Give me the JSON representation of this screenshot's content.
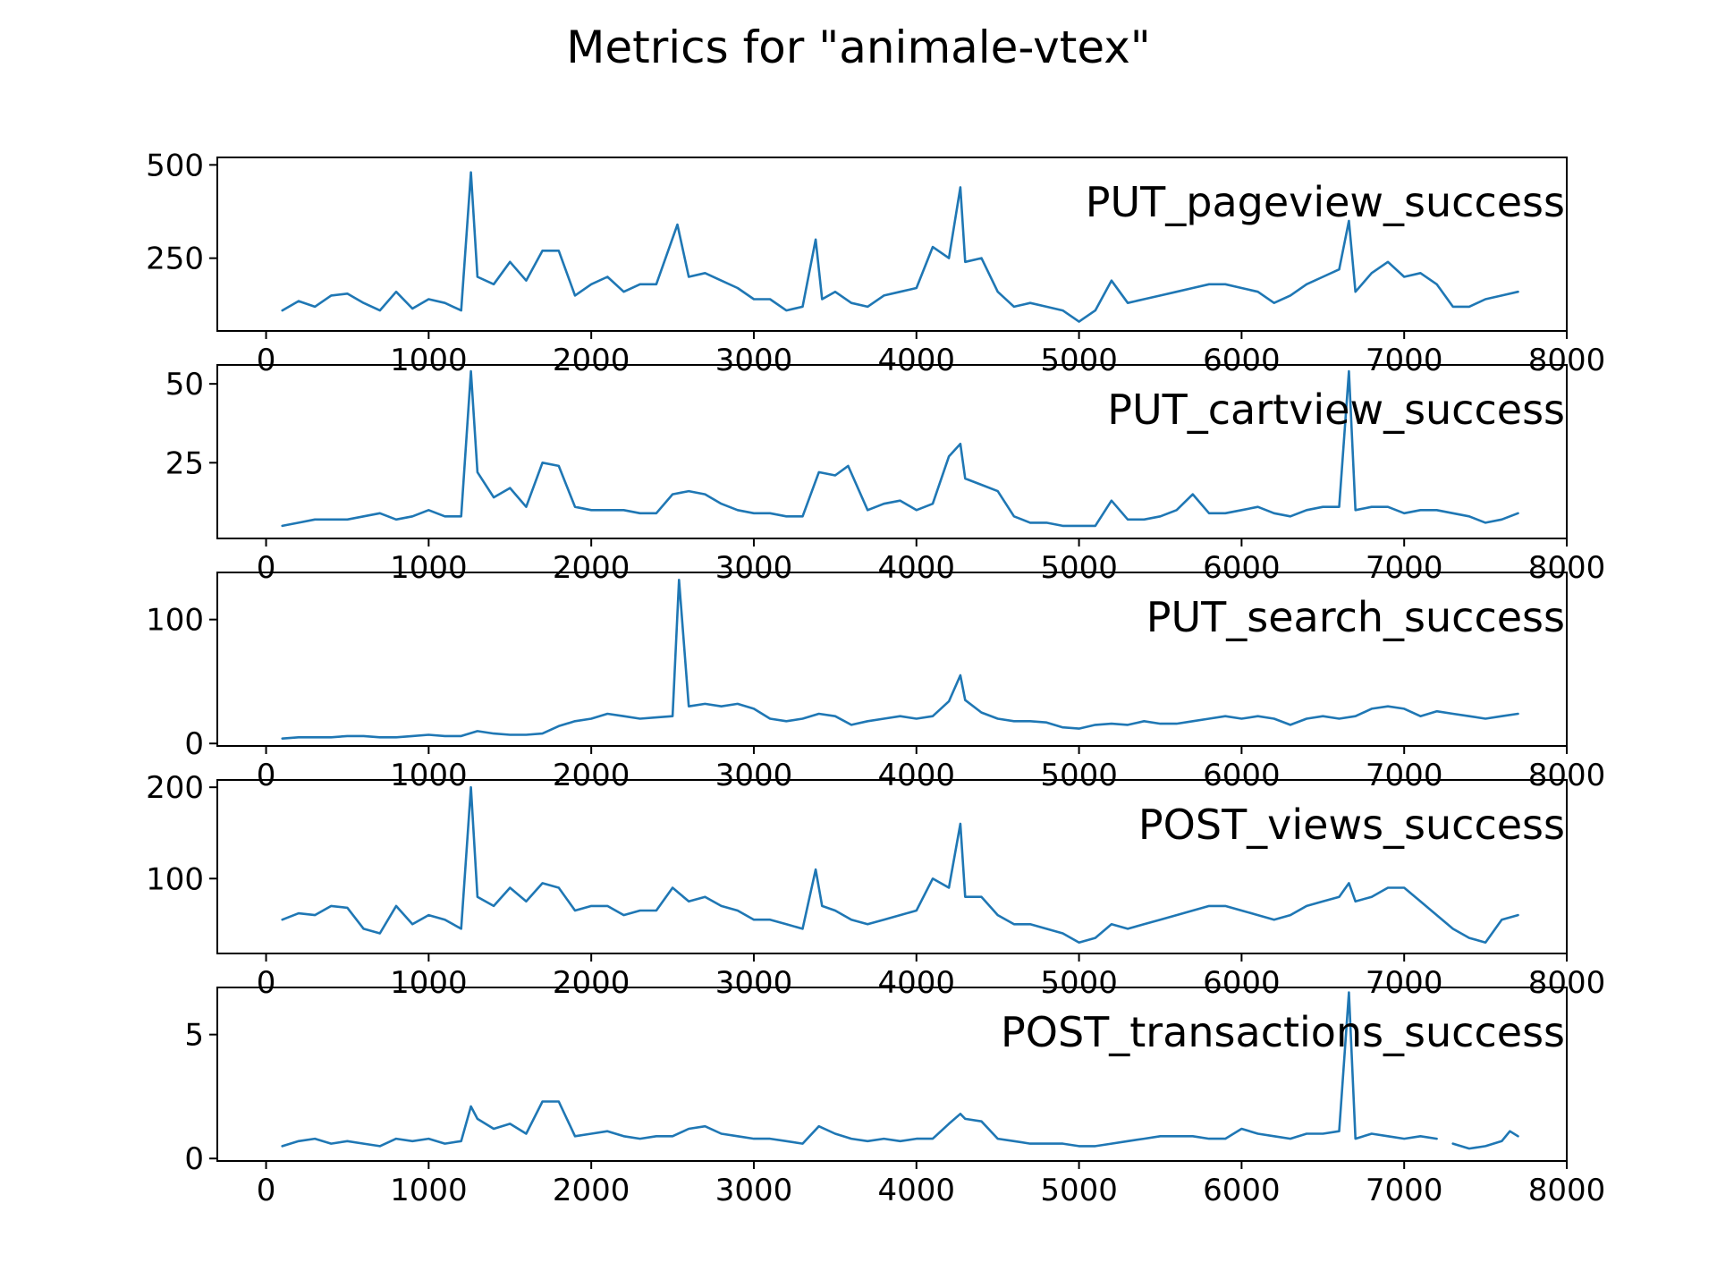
{
  "figure": {
    "title": "Metrics for \"animale-vtex\"",
    "line_color": "#1f77b4"
  },
  "chart_data": [
    {
      "type": "line",
      "label": "PUT_pageview_success",
      "xlim": [
        -300,
        8000
      ],
      "ylim": [
        55,
        520
      ],
      "yticks": [
        250,
        500
      ],
      "xticks": [
        0,
        1000,
        2000,
        3000,
        4000,
        5000,
        6000,
        7000,
        8000
      ],
      "grid": false,
      "series": [
        {
          "x": [
            100,
            200,
            300,
            400,
            500,
            600,
            700,
            800,
            900,
            1000,
            1100,
            1200,
            1260,
            1300,
            1400,
            1500,
            1600,
            1700,
            1800,
            1900,
            2000,
            2100,
            2200,
            2300,
            2400,
            2530,
            2600,
            2700,
            2800,
            2900,
            3000,
            3100,
            3200,
            3300,
            3380,
            3420,
            3500,
            3600,
            3700,
            3800,
            3900,
            4000,
            4100,
            4200,
            4270,
            4300,
            4400,
            4500,
            4600,
            4700,
            4800,
            4900,
            5000,
            5100,
            5200,
            5300,
            5400,
            5500,
            5600,
            5700,
            5800,
            5900,
            6000,
            6100,
            6200,
            6300,
            6400,
            6500,
            6600,
            6660,
            6700,
            6800,
            6900,
            7000,
            7100,
            7200,
            7300,
            7400,
            7500,
            7600,
            7700
          ],
          "y": [
            110,
            135,
            120,
            150,
            155,
            130,
            110,
            160,
            115,
            140,
            130,
            110,
            480,
            200,
            180,
            240,
            190,
            270,
            270,
            150,
            180,
            200,
            160,
            180,
            180,
            340,
            200,
            210,
            190,
            170,
            140,
            140,
            110,
            120,
            300,
            140,
            160,
            130,
            120,
            150,
            160,
            170,
            280,
            250,
            440,
            240,
            250,
            160,
            120,
            130,
            120,
            110,
            80,
            110,
            190,
            130,
            140,
            150,
            160,
            170,
            180,
            180,
            170,
            160,
            130,
            150,
            180,
            200,
            220,
            350,
            160,
            210,
            240,
            200,
            210,
            180,
            120,
            120,
            140,
            150,
            160
          ]
        }
      ]
    },
    {
      "type": "line",
      "label": "PUT_cartview_success",
      "xlim": [
        -300,
        8000
      ],
      "ylim": [
        1,
        56
      ],
      "yticks": [
        25,
        50
      ],
      "xticks": [
        0,
        1000,
        2000,
        3000,
        4000,
        5000,
        6000,
        7000,
        8000
      ],
      "grid": false,
      "series": [
        {
          "x": [
            100,
            200,
            300,
            400,
            500,
            600,
            700,
            800,
            900,
            1000,
            1100,
            1200,
            1260,
            1300,
            1400,
            1500,
            1600,
            1700,
            1800,
            1900,
            2000,
            2100,
            2200,
            2300,
            2400,
            2500,
            2600,
            2700,
            2800,
            2900,
            3000,
            3100,
            3200,
            3300,
            3400,
            3500,
            3580,
            3700,
            3800,
            3900,
            4000,
            4100,
            4200,
            4270,
            4300,
            4400,
            4500,
            4600,
            4700,
            4800,
            4900,
            5000,
            5100,
            5200,
            5300,
            5400,
            5500,
            5600,
            5700,
            5800,
            5900,
            6000,
            6100,
            6200,
            6300,
            6400,
            6500,
            6600,
            6660,
            6700,
            6800,
            6900,
            7000,
            7100,
            7200,
            7300,
            7400,
            7500,
            7600,
            7700
          ],
          "y": [
            5,
            6,
            7,
            7,
            7,
            8,
            9,
            7,
            8,
            10,
            8,
            8,
            54,
            22,
            14,
            17,
            11,
            25,
            24,
            11,
            10,
            10,
            10,
            9,
            9,
            15,
            16,
            15,
            12,
            10,
            9,
            9,
            8,
            8,
            22,
            21,
            24,
            10,
            12,
            13,
            10,
            12,
            27,
            31,
            20,
            18,
            16,
            8,
            6,
            6,
            5,
            5,
            5,
            13,
            7,
            7,
            8,
            10,
            15,
            9,
            9,
            10,
            11,
            9,
            8,
            10,
            11,
            11,
            54,
            10,
            11,
            11,
            9,
            10,
            10,
            9,
            8,
            6,
            7,
            9
          ]
        }
      ]
    },
    {
      "type": "line",
      "label": "PUT_search_success",
      "xlim": [
        -300,
        8000
      ],
      "ylim": [
        -2,
        138
      ],
      "yticks": [
        0,
        100
      ],
      "xticks": [
        0,
        1000,
        2000,
        3000,
        4000,
        5000,
        6000,
        7000,
        8000
      ],
      "grid": false,
      "series": [
        {
          "x": [
            100,
            200,
            300,
            400,
            500,
            600,
            700,
            800,
            900,
            1000,
            1100,
            1200,
            1300,
            1400,
            1500,
            1600,
            1700,
            1800,
            1900,
            2000,
            2100,
            2200,
            2300,
            2400,
            2500,
            2540,
            2600,
            2700,
            2800,
            2900,
            3000,
            3100,
            3200,
            3300,
            3400,
            3500,
            3600,
            3700,
            3800,
            3900,
            4000,
            4100,
            4200,
            4270,
            4300,
            4400,
            4500,
            4600,
            4700,
            4800,
            4900,
            5000,
            5100,
            5200,
            5300,
            5400,
            5500,
            5600,
            5700,
            5800,
            5900,
            6000,
            6100,
            6200,
            6300,
            6400,
            6500,
            6600,
            6700,
            6800,
            6900,
            7000,
            7100,
            7200,
            7300,
            7400,
            7500,
            7600,
            7700
          ],
          "y": [
            4,
            5,
            5,
            5,
            6,
            6,
            5,
            5,
            6,
            7,
            6,
            6,
            10,
            8,
            7,
            7,
            8,
            14,
            18,
            20,
            24,
            22,
            20,
            21,
            22,
            132,
            30,
            32,
            30,
            32,
            28,
            20,
            18,
            20,
            24,
            22,
            15,
            18,
            20,
            22,
            20,
            22,
            34,
            55,
            35,
            25,
            20,
            18,
            18,
            17,
            13,
            12,
            15,
            16,
            15,
            18,
            16,
            16,
            18,
            20,
            22,
            20,
            22,
            20,
            15,
            20,
            22,
            20,
            22,
            28,
            30,
            28,
            22,
            26,
            24,
            22,
            20,
            22,
            24
          ]
        }
      ]
    },
    {
      "type": "line",
      "label": "POST_views_success",
      "xlim": [
        -300,
        8000
      ],
      "ylim": [
        18,
        208
      ],
      "yticks": [
        100,
        200
      ],
      "xticks": [
        0,
        1000,
        2000,
        3000,
        4000,
        5000,
        6000,
        7000,
        8000
      ],
      "grid": false,
      "series": [
        {
          "x": [
            100,
            200,
            300,
            400,
            500,
            600,
            700,
            800,
            900,
            1000,
            1100,
            1200,
            1260,
            1300,
            1400,
            1500,
            1600,
            1700,
            1800,
            1900,
            2000,
            2100,
            2200,
            2300,
            2400,
            2500,
            2600,
            2700,
            2800,
            2900,
            3000,
            3100,
            3200,
            3300,
            3380,
            3420,
            3500,
            3600,
            3700,
            3800,
            3900,
            4000,
            4100,
            4200,
            4270,
            4300,
            4400,
            4500,
            4600,
            4700,
            4800,
            4900,
            5000,
            5100,
            5200,
            5300,
            5400,
            5500,
            5600,
            5700,
            5800,
            5900,
            6000,
            6100,
            6200,
            6300,
            6400,
            6500,
            6600,
            6660,
            6700,
            6800,
            6900,
            7000,
            7100,
            7200,
            7300,
            7400,
            7500,
            7600,
            7700
          ],
          "y": [
            55,
            62,
            60,
            70,
            68,
            45,
            40,
            70,
            50,
            60,
            55,
            45,
            200,
            80,
            70,
            90,
            75,
            95,
            90,
            65,
            70,
            70,
            60,
            65,
            65,
            90,
            75,
            80,
            70,
            65,
            55,
            55,
            50,
            45,
            110,
            70,
            65,
            55,
            50,
            55,
            60,
            65,
            100,
            90,
            160,
            80,
            80,
            60,
            50,
            50,
            45,
            40,
            30,
            35,
            50,
            45,
            50,
            55,
            60,
            65,
            70,
            70,
            65,
            60,
            55,
            60,
            70,
            75,
            80,
            95,
            75,
            80,
            90,
            90,
            75,
            60,
            45,
            35,
            30,
            55,
            60
          ]
        }
      ]
    },
    {
      "type": "line",
      "label": "POST_transactions_success",
      "xlim": [
        -300,
        8000
      ],
      "ylim": [
        -0.1,
        6.9
      ],
      "yticks": [
        0,
        5
      ],
      "xticks": [
        0,
        1000,
        2000,
        3000,
        4000,
        5000,
        6000,
        7000,
        8000
      ],
      "grid": false,
      "series": [
        {
          "x": [
            100,
            200,
            300,
            400,
            500,
            600,
            700,
            800,
            900,
            1000,
            1100,
            1200,
            1260,
            1300,
            1400,
            1500,
            1600,
            1700,
            1800,
            1900,
            2000,
            2100,
            2200,
            2300,
            2400,
            2500,
            2600,
            2700,
            2800,
            2900,
            3000,
            3100,
            3200,
            3300,
            3400,
            3500,
            3600,
            3700,
            3800,
            3900,
            4000,
            4100,
            4200,
            4270,
            4300,
            4400,
            4500,
            4600,
            4700,
            4800,
            4900,
            5000,
            5100,
            5200,
            5300,
            5400,
            5500,
            5600,
            5700,
            5800,
            5900,
            6000,
            6100,
            6200,
            6300,
            6400,
            6500,
            6600,
            6660,
            6700,
            6800,
            6900,
            7000,
            7100,
            7200
          ],
          "y": [
            0.5,
            0.7,
            0.8,
            0.6,
            0.7,
            0.6,
            0.5,
            0.8,
            0.7,
            0.8,
            0.6,
            0.7,
            2.1,
            1.6,
            1.2,
            1.4,
            1.0,
            2.3,
            2.3,
            0.9,
            1.0,
            1.1,
            0.9,
            0.8,
            0.9,
            0.9,
            1.2,
            1.3,
            1.0,
            0.9,
            0.8,
            0.8,
            0.7,
            0.6,
            1.3,
            1.0,
            0.8,
            0.7,
            0.8,
            0.7,
            0.8,
            0.8,
            1.4,
            1.8,
            1.6,
            1.5,
            0.8,
            0.7,
            0.6,
            0.6,
            0.6,
            0.5,
            0.5,
            0.6,
            0.7,
            0.8,
            0.9,
            0.9,
            0.9,
            0.8,
            0.8,
            1.2,
            1.0,
            0.9,
            0.8,
            1.0,
            1.0,
            1.1,
            6.7,
            0.8,
            1.0,
            0.9,
            0.8,
            0.9,
            0.8
          ]
        },
        {
          "x": [
            7300,
            7400,
            7500,
            7600,
            7650,
            7700
          ],
          "y": [
            0.6,
            0.4,
            0.5,
            0.7,
            1.1,
            0.9
          ]
        }
      ]
    }
  ]
}
